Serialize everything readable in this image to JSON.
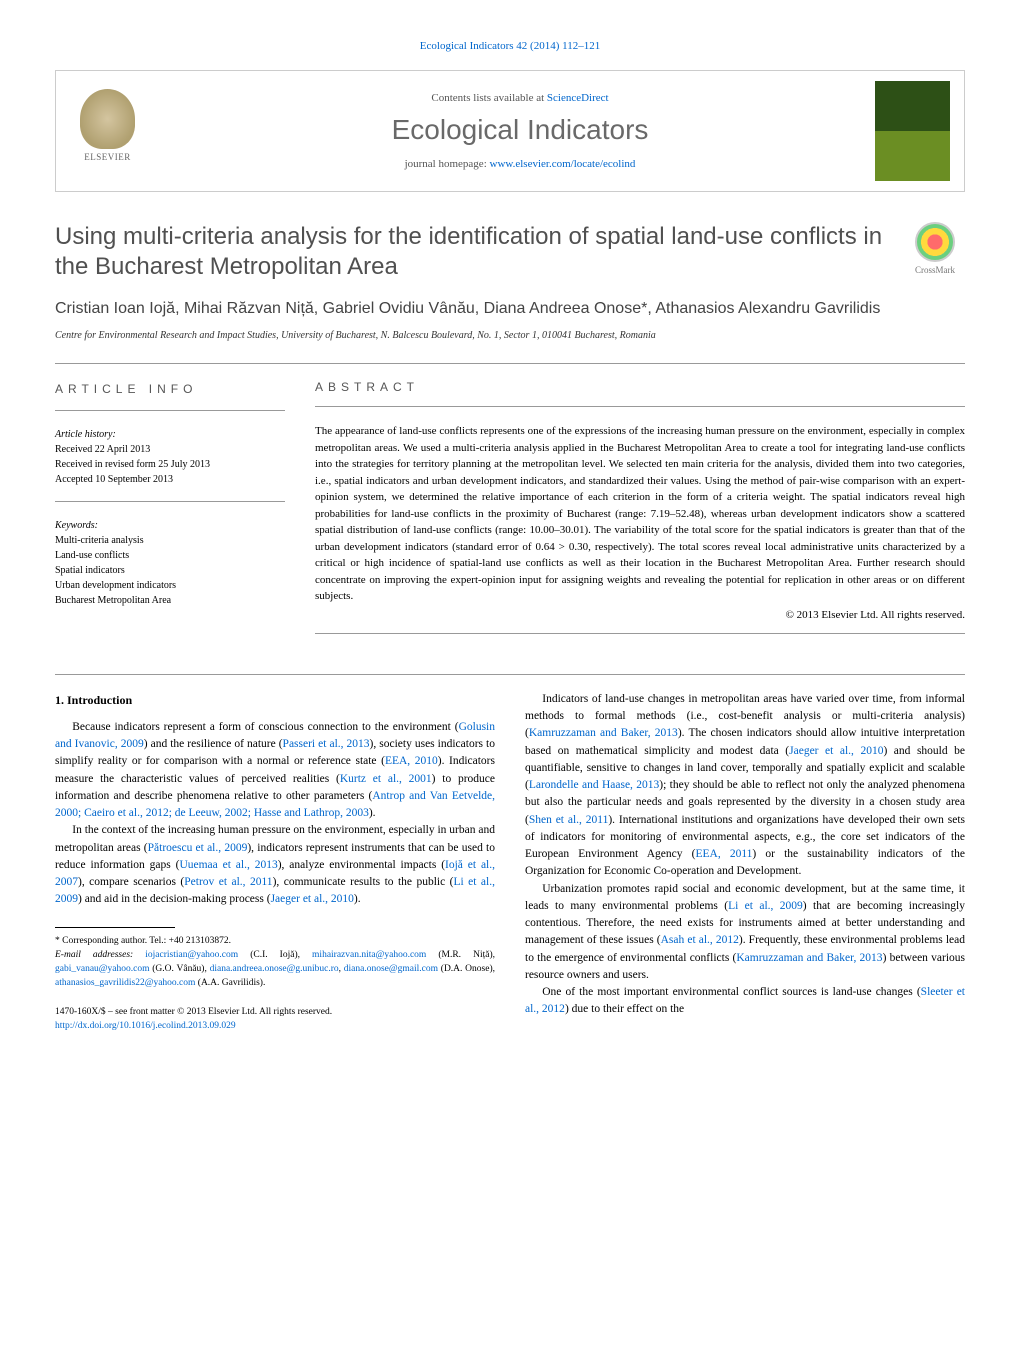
{
  "journal_ref": "Ecological Indicators 42 (2014) 112–121",
  "banner": {
    "contents_line_prefix": "Contents lists available at ",
    "contents_line_link": "ScienceDirect",
    "journal_name": "Ecological Indicators",
    "homepage_prefix": "journal homepage: ",
    "homepage_link": "www.elsevier.com/locate/ecolind",
    "elsevier_label": "ELSEVIER",
    "cover_label": "ECOLOGICAL INDICATORS"
  },
  "crossmark_label": "CrossMark",
  "title": "Using multi-criteria analysis for the identification of spatial land-use conflicts in the Bucharest Metropolitan Area",
  "authors": "Cristian Ioan Iojă, Mihai Răzvan Niță, Gabriel Ovidiu Vânău, Diana Andreea Onose*, Athanasios Alexandru Gavrilidis",
  "affiliation": "Centre for Environmental Research and Impact Studies, University of Bucharest, N. Balcescu Boulevard, No. 1, Sector 1, 010041 Bucharest, Romania",
  "info": {
    "heading": "ARTICLE INFO",
    "history_label": "Article history:",
    "history": [
      "Received 22 April 2013",
      "Received in revised form 25 July 2013",
      "Accepted 10 September 2013"
    ],
    "keywords_label": "Keywords:",
    "keywords": [
      "Multi-criteria analysis",
      "Land-use conflicts",
      "Spatial indicators",
      "Urban development indicators",
      "Bucharest Metropolitan Area"
    ]
  },
  "abstract": {
    "heading": "ABSTRACT",
    "text": "The appearance of land-use conflicts represents one of the expressions of the increasing human pressure on the environment, especially in complex metropolitan areas. We used a multi-criteria analysis applied in the Bucharest Metropolitan Area to create a tool for integrating land-use conflicts into the strategies for territory planning at the metropolitan level. We selected ten main criteria for the analysis, divided them into two categories, i.e., spatial indicators and urban development indicators, and standardized their values. Using the method of pair-wise comparison with an expert-opinion system, we determined the relative importance of each criterion in the form of a criteria weight. The spatial indicators reveal high probabilities for land-use conflicts in the proximity of Bucharest (range: 7.19–52.48), whereas urban development indicators show a scattered spatial distribution of land-use conflicts (range: 10.00–30.01). The variability of the total score for the spatial indicators is greater than that of the urban development indicators (standard error of 0.64 > 0.30, respectively). The total scores reveal local administrative units characterized by a critical or high incidence of spatial-land use conflicts as well as their location in the Bucharest Metropolitan Area. Further research should concentrate on improving the expert-opinion input for assigning weights and revealing the potential for replication in other areas or on different subjects.",
    "copyright": "© 2013 Elsevier Ltd. All rights reserved."
  },
  "section_heading": "1. Introduction",
  "left_paragraphs": [
    {
      "parts": [
        {
          "t": "Because indicators represent a form of conscious connection to the environment ("
        },
        {
          "t": "Golusin and Ivanovic, 2009",
          "link": true
        },
        {
          "t": ") and the resilience of nature ("
        },
        {
          "t": "Passeri et al., 2013",
          "link": true
        },
        {
          "t": "), society uses indicators to simplify reality or for comparison with a normal or reference state ("
        },
        {
          "t": "EEA, 2010",
          "link": true
        },
        {
          "t": "). Indicators measure the characteristic values of perceived realities ("
        },
        {
          "t": "Kurtz et al., 2001",
          "link": true
        },
        {
          "t": ") to produce information and describe phenomena relative to other parameters ("
        },
        {
          "t": "Antrop and Van Eetvelde, 2000; Caeiro et al., 2012; de Leeuw, 2002; Hasse and Lathrop, 2003",
          "link": true
        },
        {
          "t": ")."
        }
      ]
    },
    {
      "parts": [
        {
          "t": "In the context of the increasing human pressure on the environment, especially in urban and metropolitan areas ("
        },
        {
          "t": "Pătroescu et al., 2009",
          "link": true
        },
        {
          "t": "), indicators represent instruments that can be used to reduce information gaps ("
        },
        {
          "t": "Uuemaa et al., 2013",
          "link": true
        },
        {
          "t": "), analyze environmental impacts ("
        },
        {
          "t": "Iojă et al., 2007",
          "link": true
        },
        {
          "t": "), compare scenarios ("
        },
        {
          "t": "Petrov et al., 2011",
          "link": true
        },
        {
          "t": "), communicate results to the public ("
        },
        {
          "t": "Li et al., 2009",
          "link": true
        },
        {
          "t": ") and aid in the decision-making process ("
        },
        {
          "t": "Jaeger et al., 2010",
          "link": true
        },
        {
          "t": ")."
        }
      ]
    }
  ],
  "right_paragraphs": [
    {
      "parts": [
        {
          "t": "Indicators of land-use changes in metropolitan areas have varied over time, from informal methods to formal methods (i.e., cost-benefit analysis or multi-criteria analysis) ("
        },
        {
          "t": "Kamruzzaman and Baker, 2013",
          "link": true
        },
        {
          "t": "). The chosen indicators should allow intuitive interpretation based on mathematical simplicity and modest data ("
        },
        {
          "t": "Jaeger et al., 2010",
          "link": true
        },
        {
          "t": ") and should be quantifiable, sensitive to changes in land cover, temporally and spatially explicit and scalable ("
        },
        {
          "t": "Larondelle and Haase, 2013",
          "link": true
        },
        {
          "t": "); they should be able to reflect not only the analyzed phenomena but also the particular needs and goals represented by the diversity in a chosen study area ("
        },
        {
          "t": "Shen et al., 2011",
          "link": true
        },
        {
          "t": "). International institutions and organizations have developed their own sets of indicators for monitoring of environmental aspects, e.g., the core set indicators of the European Environment Agency ("
        },
        {
          "t": "EEA, 2011",
          "link": true
        },
        {
          "t": ") or the sustainability indicators of the Organization for Economic Co-operation and Development."
        }
      ]
    },
    {
      "parts": [
        {
          "t": "Urbanization promotes rapid social and economic development, but at the same time, it leads to many environmental problems ("
        },
        {
          "t": "Li et al., 2009",
          "link": true
        },
        {
          "t": ") that are becoming increasingly contentious. Therefore, the need exists for instruments aimed at better understanding and management of these issues ("
        },
        {
          "t": "Asah et al., 2012",
          "link": true
        },
        {
          "t": "). Frequently, these environmental problems lead to the emergence of environmental conflicts ("
        },
        {
          "t": "Kamruzzaman and Baker, 2013",
          "link": true
        },
        {
          "t": ") between various resource owners and users."
        }
      ]
    },
    {
      "parts": [
        {
          "t": "One of the most important environmental conflict sources is land-use changes ("
        },
        {
          "t": "Sleeter et al., 2012",
          "link": true
        },
        {
          "t": ") due to their effect on the"
        }
      ]
    }
  ],
  "footnotes": {
    "corr": "* Corresponding author. Tel.: +40 213103872.",
    "emails_label": "E-mail addresses: ",
    "emails": [
      {
        "addr": "iojacristian@yahoo.com",
        "person": "(C.I. Iojă)"
      },
      {
        "addr": "mihairazvan.nita@yahoo.com",
        "person": "(M.R. Niță)"
      },
      {
        "addr": "gabi_vanau@yahoo.com",
        "person": "(G.O. Vânău)"
      },
      {
        "addr": "diana.andreea.onose@g.unibuc.ro",
        "person": ""
      },
      {
        "addr": "diana.onose@gmail.com",
        "person": "(D.A. Onose)"
      },
      {
        "addr": "athanasios_gavrilidis22@yahoo.com",
        "person": "(A.A. Gavrilidis)"
      }
    ]
  },
  "footer": {
    "issn": "1470-160X/$ – see front matter © 2013 Elsevier Ltd. All rights reserved.",
    "doi": "http://dx.doi.org/10.1016/j.ecolind.2013.09.029"
  },
  "colors": {
    "link": "#0066cc",
    "heading_gray": "#505050",
    "text": "#000000"
  }
}
